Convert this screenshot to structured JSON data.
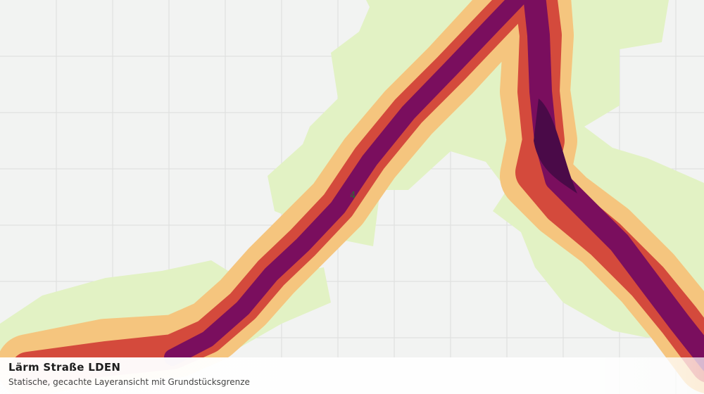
{
  "header": {
    "title": "Lärm Straße LDEN",
    "subtitle": "Statische, gecachte Layeransicht mit Grundstücksgrenze"
  },
  "map": {
    "labels": [
      "4"
    ]
  }
}
